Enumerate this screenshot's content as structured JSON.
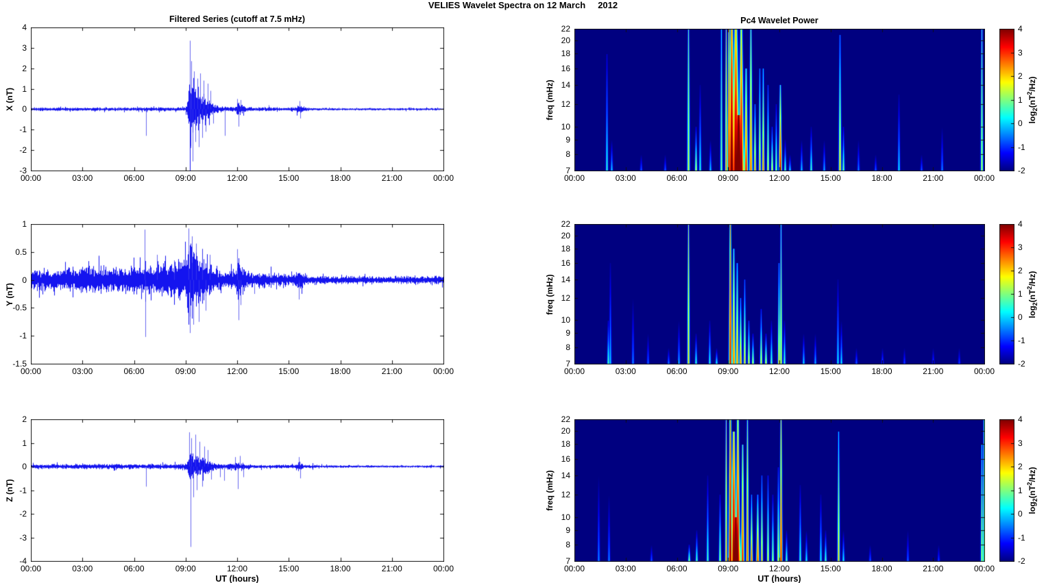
{
  "figure": {
    "title": "VELIES Wavelet Spectra on 12 March     2012",
    "xlabel": "UT (hours)",
    "xticklabels": [
      "00:00",
      "03:00",
      "06:00",
      "09:00",
      "12:00",
      "15:00",
      "18:00",
      "21:00",
      "00:00"
    ],
    "colorbar_ticks": [
      4,
      3,
      2,
      1,
      0,
      -1,
      -2
    ],
    "colorbar_label": {
      "pre": "log",
      "sub": "2",
      "mid": "(nT",
      "sup": "2",
      "post": "/Hz)"
    },
    "line_color": "#0000EE",
    "heat_background": "#000080",
    "colormap": "jet",
    "clim": [
      -2,
      4
    ]
  },
  "chart_data": [
    {
      "id": "x_series",
      "type": "line",
      "title": "Filtered Series (cutoff at 7.5 mHz)",
      "ylabel": "X (nT)",
      "ylim": [
        -3,
        4
      ],
      "yticks": [
        4,
        3,
        2,
        1,
        0,
        -1,
        -2,
        -3
      ],
      "x_range_hours": [
        0,
        24
      ],
      "envelope": [
        [
          0,
          0.055
        ],
        [
          5.5,
          0.055
        ],
        [
          6.3,
          0.06
        ],
        [
          8.9,
          0.065
        ],
        [
          9.05,
          0.12
        ],
        [
          9.15,
          0.55
        ],
        [
          9.25,
          1.05
        ],
        [
          9.4,
          0.9
        ],
        [
          9.6,
          0.75
        ],
        [
          9.9,
          0.55
        ],
        [
          10.2,
          0.35
        ],
        [
          10.5,
          0.22
        ],
        [
          10.9,
          0.1
        ],
        [
          11.4,
          0.07
        ],
        [
          11.9,
          0.1
        ],
        [
          12.05,
          0.28
        ],
        [
          12.2,
          0.22
        ],
        [
          12.45,
          0.08
        ],
        [
          13.1,
          0.05
        ],
        [
          13.8,
          0.07
        ],
        [
          14.3,
          0.05
        ],
        [
          15.4,
          0.06
        ],
        [
          15.6,
          0.18
        ],
        [
          15.8,
          0.1
        ],
        [
          16.2,
          0.04
        ],
        [
          18,
          0.035
        ],
        [
          24,
          0.035
        ]
      ],
      "spikes": [
        [
          6.68,
          -1.3
        ],
        [
          9.23,
          3.35
        ],
        [
          9.28,
          -1.9
        ],
        [
          9.33,
          2.35
        ],
        [
          9.42,
          -2.55
        ],
        [
          9.5,
          1.85
        ],
        [
          9.55,
          -1.6
        ],
        [
          9.68,
          1.5
        ],
        [
          9.75,
          -1.85
        ],
        [
          9.85,
          1.75
        ],
        [
          9.95,
          -1.4
        ],
        [
          10.05,
          1.4
        ],
        [
          10.15,
          -1.1
        ],
        [
          10.3,
          1.25
        ],
        [
          10.45,
          0.9
        ],
        [
          10.6,
          -0.7
        ],
        [
          11.3,
          -1.3
        ],
        [
          12.0,
          0.5
        ],
        [
          12.08,
          -0.85
        ],
        [
          12.18,
          0.45
        ],
        [
          13.85,
          0.2
        ],
        [
          15.62,
          0.4
        ],
        [
          15.68,
          -0.45
        ]
      ]
    },
    {
      "id": "x_wavelet",
      "type": "heatmap",
      "title": "Pc4 Wavelet Power",
      "ylabel": "freq (mHz)",
      "flim": [
        7,
        22
      ],
      "yticks": [
        22,
        20,
        18,
        16,
        14,
        12,
        10,
        9,
        8,
        7
      ],
      "clim": [
        -2,
        4
      ],
      "streaks": [
        [
          1.9,
          0.05,
          18,
          0.6,
          -1.5
        ],
        [
          2.15,
          0.04,
          9,
          0.2,
          -2
        ],
        [
          3.9,
          0.04,
          8,
          -0.5,
          -2
        ],
        [
          5.3,
          0.04,
          8,
          -0.5,
          -2
        ],
        [
          6.65,
          0.08,
          22,
          1.6,
          0.8
        ],
        [
          7.1,
          0.06,
          10,
          1.8,
          -1.5
        ],
        [
          7.35,
          0.05,
          14,
          0.6,
          -1.8
        ],
        [
          7.95,
          0.04,
          9,
          0.2,
          -2
        ],
        [
          8.6,
          0.05,
          22,
          1.2,
          0.2
        ],
        [
          8.85,
          0.06,
          22,
          2.6,
          1.2
        ],
        [
          9.05,
          0.09,
          22,
          3.8,
          2.2
        ],
        [
          9.2,
          0.22,
          22,
          4.4,
          2.6
        ],
        [
          9.45,
          0.28,
          22,
          4.4,
          2.0
        ],
        [
          9.75,
          0.18,
          22,
          4.2,
          1.6
        ],
        [
          9.6,
          0.5,
          11,
          4.5,
          4.2
        ],
        [
          10.05,
          0.12,
          16,
          3.4,
          0.5
        ],
        [
          10.3,
          0.1,
          22,
          3.0,
          0.8
        ],
        [
          10.55,
          0.07,
          12,
          2.6,
          -0.5
        ],
        [
          10.85,
          0.06,
          16,
          2.4,
          -0.5
        ],
        [
          11.05,
          0.07,
          16,
          2.8,
          0
        ],
        [
          11.3,
          0.05,
          14,
          2.0,
          -1
        ],
        [
          11.55,
          0.05,
          10,
          2.0,
          -1.2
        ],
        [
          11.78,
          0.04,
          12,
          1.4,
          -1.5
        ],
        [
          12.05,
          0.09,
          14,
          3.9,
          0.5
        ],
        [
          12.32,
          0.05,
          9,
          1.0,
          -1.8
        ],
        [
          12.6,
          0.04,
          8,
          0.4,
          -2
        ],
        [
          13.3,
          0.04,
          9,
          0.2,
          -2
        ],
        [
          13.85,
          0.05,
          10,
          0.9,
          -1.8
        ],
        [
          14.6,
          0.04,
          9,
          0,
          -2
        ],
        [
          15.55,
          0.08,
          21,
          2.2,
          -0.5
        ],
        [
          15.72,
          0.05,
          10,
          1.2,
          -1.5
        ],
        [
          16.6,
          0.04,
          9,
          -0.3,
          -2
        ],
        [
          17.6,
          0.04,
          8,
          -0.5,
          -2
        ],
        [
          19.0,
          0.05,
          13,
          0.3,
          -1.8
        ],
        [
          20.3,
          0.04,
          8,
          -0.5,
          -2
        ],
        [
          21.5,
          0.04,
          10,
          -0.3,
          -2
        ],
        [
          23.85,
          0.07,
          22,
          1.6,
          0.6
        ]
      ]
    },
    {
      "id": "y_series",
      "type": "line",
      "ylabel": "Y (nT)",
      "ylim": [
        -1.5,
        1
      ],
      "yticks": [
        1,
        0.5,
        0,
        -0.5,
        -1,
        -1.5
      ],
      "x_range_hours": [
        0,
        24
      ],
      "envelope": [
        [
          0,
          0.12
        ],
        [
          1.5,
          0.13
        ],
        [
          3,
          0.15
        ],
        [
          5,
          0.16
        ],
        [
          6.5,
          0.17
        ],
        [
          7.5,
          0.19
        ],
        [
          8.5,
          0.21
        ],
        [
          9.0,
          0.24
        ],
        [
          9.15,
          0.5
        ],
        [
          9.35,
          0.45
        ],
        [
          9.6,
          0.4
        ],
        [
          9.9,
          0.33
        ],
        [
          10.2,
          0.26
        ],
        [
          10.5,
          0.18
        ],
        [
          10.8,
          0.12
        ],
        [
          11.3,
          0.09
        ],
        [
          11.85,
          0.12
        ],
        [
          12.05,
          0.25
        ],
        [
          12.25,
          0.18
        ],
        [
          12.5,
          0.1
        ],
        [
          13.0,
          0.08
        ],
        [
          13.6,
          0.1
        ],
        [
          14.2,
          0.07
        ],
        [
          15.3,
          0.07
        ],
        [
          15.6,
          0.12
        ],
        [
          16.0,
          0.06
        ],
        [
          17,
          0.05
        ],
        [
          20,
          0.045
        ],
        [
          24,
          0.045
        ]
      ],
      "spikes": [
        [
          6.63,
          0.9
        ],
        [
          6.66,
          -1.02
        ],
        [
          7.35,
          0.45
        ],
        [
          8.35,
          0.35
        ],
        [
          9.18,
          0.92
        ],
        [
          9.24,
          -0.95
        ],
        [
          9.35,
          0.78
        ],
        [
          9.45,
          -0.8
        ],
        [
          9.6,
          0.65
        ],
        [
          9.75,
          -0.75
        ],
        [
          9.95,
          0.55
        ],
        [
          10.15,
          -0.55
        ],
        [
          10.4,
          0.45
        ],
        [
          12.0,
          0.55
        ],
        [
          12.07,
          -0.72
        ],
        [
          12.2,
          -0.45
        ],
        [
          13.0,
          -0.25
        ],
        [
          15.6,
          -0.35
        ]
      ]
    },
    {
      "id": "y_wavelet",
      "type": "heatmap",
      "ylabel": "freq (mHz)",
      "flim": [
        7,
        22
      ],
      "yticks": [
        22,
        20,
        18,
        16,
        14,
        12,
        10,
        9,
        8,
        7
      ],
      "clim": [
        -2,
        4
      ],
      "streaks": [
        [
          1.95,
          0.05,
          10,
          0.9,
          -1.5
        ],
        [
          2.1,
          0.04,
          16,
          0.1,
          -1.8
        ],
        [
          3.4,
          0.04,
          12,
          -0.3,
          -2
        ],
        [
          4.3,
          0.04,
          9,
          -0.5,
          -2
        ],
        [
          5.5,
          0.04,
          8,
          -0.3,
          -2
        ],
        [
          6.1,
          0.04,
          10,
          0,
          -2
        ],
        [
          6.65,
          0.07,
          22,
          2.1,
          1.2
        ],
        [
          7.1,
          0.05,
          9,
          0.8,
          -1.8
        ],
        [
          7.9,
          0.05,
          10,
          0.6,
          -1.8
        ],
        [
          8.3,
          0.04,
          8,
          0.6,
          -2
        ],
        [
          9.1,
          0.09,
          22,
          3.7,
          2.4
        ],
        [
          9.3,
          0.1,
          18,
          2.9,
          0.5
        ],
        [
          9.5,
          0.09,
          16,
          2.6,
          0
        ],
        [
          9.72,
          0.08,
          12,
          2.6,
          -0.5
        ],
        [
          9.95,
          0.07,
          14,
          2.2,
          -0.8
        ],
        [
          10.2,
          0.06,
          10,
          2.2,
          -1
        ],
        [
          10.45,
          0.05,
          9,
          1.8,
          -1.5
        ],
        [
          10.9,
          0.06,
          11,
          2.0,
          -1.2
        ],
        [
          11.2,
          0.06,
          9,
          2.0,
          -1.5
        ],
        [
          11.5,
          0.04,
          10,
          1.0,
          -1.8
        ],
        [
          11.95,
          0.07,
          16,
          2.2,
          -0.5
        ],
        [
          12.1,
          0.06,
          22,
          2.0,
          0.5
        ],
        [
          12.3,
          0.04,
          10,
          1.0,
          -1.8
        ],
        [
          13.4,
          0.04,
          9,
          0.3,
          -2
        ],
        [
          14.1,
          0.04,
          9,
          0,
          -2
        ],
        [
          15.4,
          0.05,
          14,
          0.4,
          -1.8
        ],
        [
          15.62,
          0.04,
          10,
          0.4,
          -2
        ],
        [
          16.5,
          0.04,
          8,
          -0.5,
          -2
        ],
        [
          18.0,
          0.04,
          8,
          -0.5,
          -2
        ],
        [
          19.3,
          0.04,
          8,
          -0.7,
          -2
        ],
        [
          21.0,
          0.04,
          8,
          -0.7,
          -2
        ],
        [
          22.5,
          0.04,
          8,
          -0.7,
          -2
        ]
      ]
    },
    {
      "id": "z_series",
      "type": "line",
      "ylabel": "Z (nT)",
      "ylim": [
        -4,
        2
      ],
      "yticks": [
        2,
        1,
        0,
        -1,
        -2,
        -3,
        -4
      ],
      "x_range_hours": [
        0,
        24
      ],
      "envelope": [
        [
          0,
          0.06
        ],
        [
          3,
          0.065
        ],
        [
          6,
          0.07
        ],
        [
          8.9,
          0.08
        ],
        [
          9.05,
          0.15
        ],
        [
          9.2,
          0.45
        ],
        [
          9.4,
          0.42
        ],
        [
          9.7,
          0.35
        ],
        [
          10.0,
          0.28
        ],
        [
          10.3,
          0.2
        ],
        [
          10.7,
          0.1
        ],
        [
          11.2,
          0.07
        ],
        [
          11.8,
          0.1
        ],
        [
          12.05,
          0.16
        ],
        [
          12.3,
          0.1
        ],
        [
          12.8,
          0.05
        ],
        [
          13.4,
          0.05
        ],
        [
          14.5,
          0.05
        ],
        [
          15.4,
          0.05
        ],
        [
          15.6,
          0.14
        ],
        [
          15.85,
          0.06
        ],
        [
          17,
          0.035
        ],
        [
          24,
          0.03
        ]
      ],
      "spikes": [
        [
          6.68,
          -0.85
        ],
        [
          9.2,
          1.45
        ],
        [
          9.27,
          -3.4
        ],
        [
          9.33,
          1.2
        ],
        [
          9.45,
          -1.3
        ],
        [
          9.55,
          1.35
        ],
        [
          9.65,
          -1.0
        ],
        [
          9.8,
          1.05
        ],
        [
          9.95,
          -0.85
        ],
        [
          10.1,
          0.85
        ],
        [
          10.3,
          0.7
        ],
        [
          10.5,
          -0.55
        ],
        [
          11.0,
          -0.45
        ],
        [
          11.25,
          -0.6
        ],
        [
          11.9,
          0.4
        ],
        [
          12.05,
          -0.95
        ],
        [
          12.15,
          0.45
        ],
        [
          12.35,
          -0.45
        ],
        [
          15.6,
          0.4
        ],
        [
          15.66,
          -0.5
        ]
      ]
    },
    {
      "id": "z_wavelet",
      "type": "heatmap",
      "ylabel": "freq (mHz)",
      "flim": [
        7,
        22
      ],
      "yticks": [
        22,
        20,
        18,
        16,
        14,
        12,
        10,
        9,
        8,
        7
      ],
      "clim": [
        -2,
        4
      ],
      "streaks": [
        [
          1.4,
          0.04,
          14,
          -0.3,
          -2
        ],
        [
          2.0,
          0.04,
          12,
          -0.3,
          -2
        ],
        [
          4.5,
          0.04,
          8,
          -0.5,
          -2
        ],
        [
          6.7,
          0.05,
          8,
          1.5,
          -1.5
        ],
        [
          7.15,
          0.05,
          9,
          1.0,
          -1.8
        ],
        [
          7.8,
          0.05,
          14,
          0.9,
          -1.8
        ],
        [
          8.5,
          0.05,
          12,
          1.5,
          -1.5
        ],
        [
          8.85,
          0.06,
          22,
          2.6,
          1.0
        ],
        [
          9.1,
          0.12,
          22,
          4.3,
          2.6
        ],
        [
          9.3,
          0.18,
          20,
          4.4,
          2.0
        ],
        [
          9.55,
          0.14,
          22,
          4.2,
          1.8
        ],
        [
          9.45,
          0.45,
          10,
          4.5,
          4.2
        ],
        [
          9.85,
          0.1,
          18,
          3.5,
          0.8
        ],
        [
          10.1,
          0.08,
          22,
          3.0,
          0.8
        ],
        [
          10.35,
          0.07,
          12,
          3.0,
          -0.5
        ],
        [
          10.7,
          0.09,
          12,
          3.2,
          -0.3
        ],
        [
          10.95,
          0.06,
          14,
          2.5,
          -0.8
        ],
        [
          11.3,
          0.05,
          14,
          2.0,
          -1.2
        ],
        [
          11.6,
          0.05,
          12,
          1.5,
          -1.5
        ],
        [
          11.9,
          0.05,
          15,
          2.0,
          -1.2
        ],
        [
          12.1,
          0.08,
          22,
          3.6,
          1.4
        ],
        [
          12.4,
          0.04,
          9,
          1.0,
          -1.8
        ],
        [
          13.2,
          0.05,
          13,
          0.8,
          -1.8
        ],
        [
          13.55,
          0.04,
          9,
          0.5,
          -2
        ],
        [
          14.4,
          0.05,
          12,
          0.5,
          -1.8
        ],
        [
          14.7,
          0.04,
          9,
          1.0,
          -1.8
        ],
        [
          15.45,
          0.07,
          20,
          2.2,
          0
        ],
        [
          15.72,
          0.04,
          9,
          0.5,
          -2
        ],
        [
          17.3,
          0.04,
          8,
          -0.5,
          -2
        ],
        [
          19.5,
          0.04,
          9,
          -0.5,
          -2
        ],
        [
          21.3,
          0.04,
          8,
          -0.7,
          -2
        ],
        [
          23.85,
          0.06,
          18,
          1.6,
          0.3
        ],
        [
          23.97,
          0.04,
          22,
          1.0,
          0.5
        ]
      ]
    }
  ]
}
